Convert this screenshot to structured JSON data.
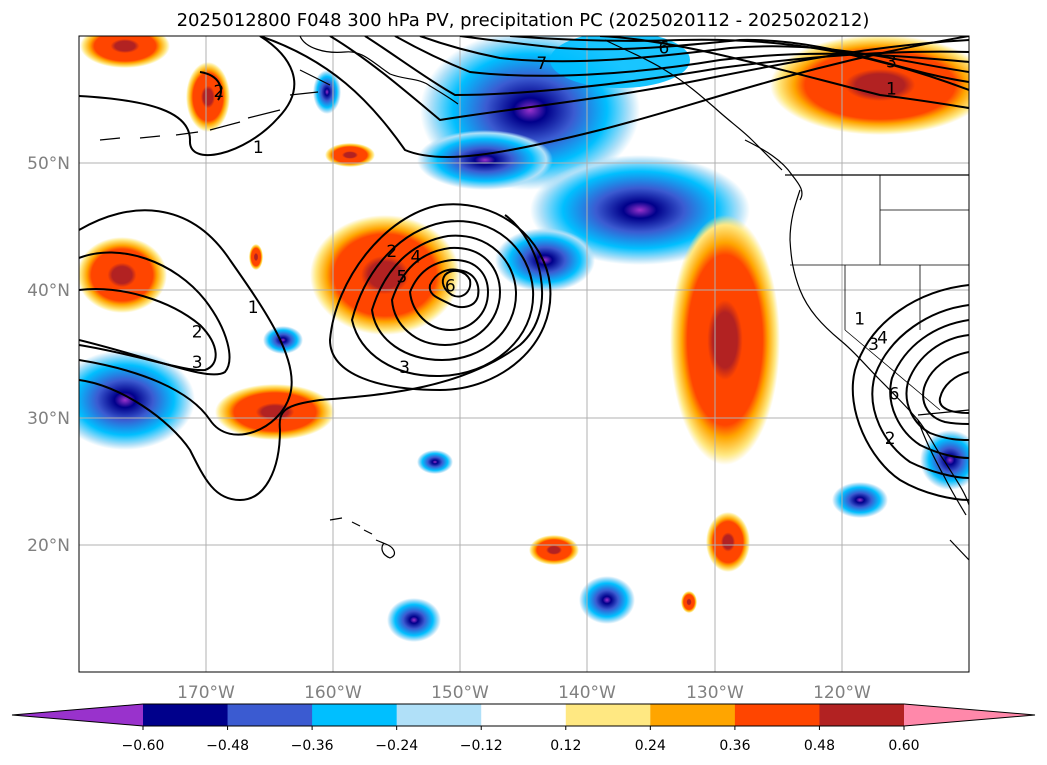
{
  "chart_data": {
    "type": "contour_map",
    "title": "2025012800 F048 300 hPa PV, precipitation PC (2025020112 - 2025020212)",
    "projection": "PlateCarree",
    "xlim": [
      -180,
      -110
    ],
    "ylim": [
      10,
      60
    ],
    "x_ticks": [
      -170,
      -160,
      -150,
      -140,
      -130,
      -120
    ],
    "x_tick_labels": [
      "170°W",
      "160°W",
      "150°W",
      "140°W",
      "130°W",
      "120°W"
    ],
    "y_ticks": [
      20,
      30,
      40,
      50
    ],
    "y_tick_labels": [
      "20°N",
      "30°N",
      "40°N",
      "50°N"
    ],
    "grid": true,
    "colorbar": {
      "orientation": "horizontal",
      "extend": "both",
      "levels": [
        -0.6,
        -0.48,
        -0.36,
        -0.24,
        -0.12,
        0.12,
        0.24,
        0.36,
        0.48,
        0.6
      ],
      "tick_labels": [
        "−0.60",
        "−0.48",
        "−0.36",
        "−0.24",
        "−0.12",
        "0.12",
        "0.24",
        "0.36",
        "0.48",
        "0.60"
      ],
      "colors": [
        "#9932cc",
        "#00008b",
        "#3b5bd1",
        "#00bfff",
        "#b0e0f8",
        "#ffffff",
        "#ffe882",
        "#ffa500",
        "#ff4500",
        "#b22222",
        "#ff88aa"
      ]
    },
    "pv_contour_labels": [
      "1",
      "2",
      "3",
      "4",
      "5",
      "6",
      "7"
    ],
    "contour_label_marks": [
      {
        "text": "2",
        "lon": -169,
        "lat": 55.6
      },
      {
        "text": "1",
        "lon": -165.9,
        "lat": 51.2
      },
      {
        "text": "1",
        "lon": -166.3,
        "lat": 38.6
      },
      {
        "text": "2",
        "lon": -170.7,
        "lat": 36.7
      },
      {
        "text": "3",
        "lon": -170.7,
        "lat": 34.3
      },
      {
        "text": "2",
        "lon": -155.4,
        "lat": 43.0
      },
      {
        "text": "4",
        "lon": -153.5,
        "lat": 42.6
      },
      {
        "text": "5",
        "lon": -154.6,
        "lat": 41.0
      },
      {
        "text": "6",
        "lon": -150.8,
        "lat": 40.3
      },
      {
        "text": "3",
        "lon": -154.4,
        "lat": 33.9
      },
      {
        "text": "7",
        "lon": -143.6,
        "lat": 57.8
      },
      {
        "text": "6",
        "lon": -134.0,
        "lat": 59.0
      },
      {
        "text": "3",
        "lon": -116.1,
        "lat": 57.9
      },
      {
        "text": "1",
        "lon": -116.1,
        "lat": 55.8
      },
      {
        "text": "1",
        "lon": -118.6,
        "lat": 37.7
      },
      {
        "text": "3",
        "lon": -117.5,
        "lat": 35.7
      },
      {
        "text": "4",
        "lon": -116.8,
        "lat": 36.2
      },
      {
        "text": "6",
        "lon": -115.9,
        "lat": 31.8
      },
      {
        "text": "2",
        "lon": -116.2,
        "lat": 28.3
      }
    ],
    "precip_regions": [
      {
        "name": "neg-NE-Pacific",
        "cls": "neg",
        "peak": -0.6,
        "lon": -150,
        "lat": 50.5
      },
      {
        "name": "neg-coastal-band",
        "cls": "neg",
        "peak": -0.48,
        "lon": -134,
        "lat": 43
      },
      {
        "name": "neg-west-subtropics",
        "cls": "neg",
        "peak": -0.48,
        "lon": -177,
        "lat": 29.5
      },
      {
        "name": "neg-sw-desert",
        "cls": "neg",
        "peak": -0.24,
        "lon": -111,
        "lat": 27
      },
      {
        "name": "neg-140W-cell",
        "cls": "neg",
        "peak": -0.48,
        "lon": -139,
        "lat": 15.5
      },
      {
        "name": "neg-hawaii-south",
        "cls": "neg",
        "peak": -0.48,
        "lon": -154,
        "lat": 13.5
      },
      {
        "name": "pos-northern-canada",
        "cls": "pos",
        "peak": 0.48,
        "lon": -114,
        "lat": 56
      },
      {
        "name": "pos-155W-cutoff",
        "cls": "pos",
        "peak": 0.48,
        "lon": -155,
        "lat": 41
      },
      {
        "name": "pos-130W-band",
        "cls": "pos",
        "peak": 0.6,
        "lon": -130,
        "lat": 37
      },
      {
        "name": "pos-west-edge",
        "cls": "pos",
        "peak": 0.48,
        "lon": -176.5,
        "lat": 41
      },
      {
        "name": "pos-165W-south",
        "cls": "pos",
        "peak": 0.48,
        "lon": -164.5,
        "lat": 30.8
      },
      {
        "name": "pos-far-NW",
        "cls": "pos",
        "peak": 0.36,
        "lon": -173.5,
        "lat": 59.3
      }
    ]
  }
}
